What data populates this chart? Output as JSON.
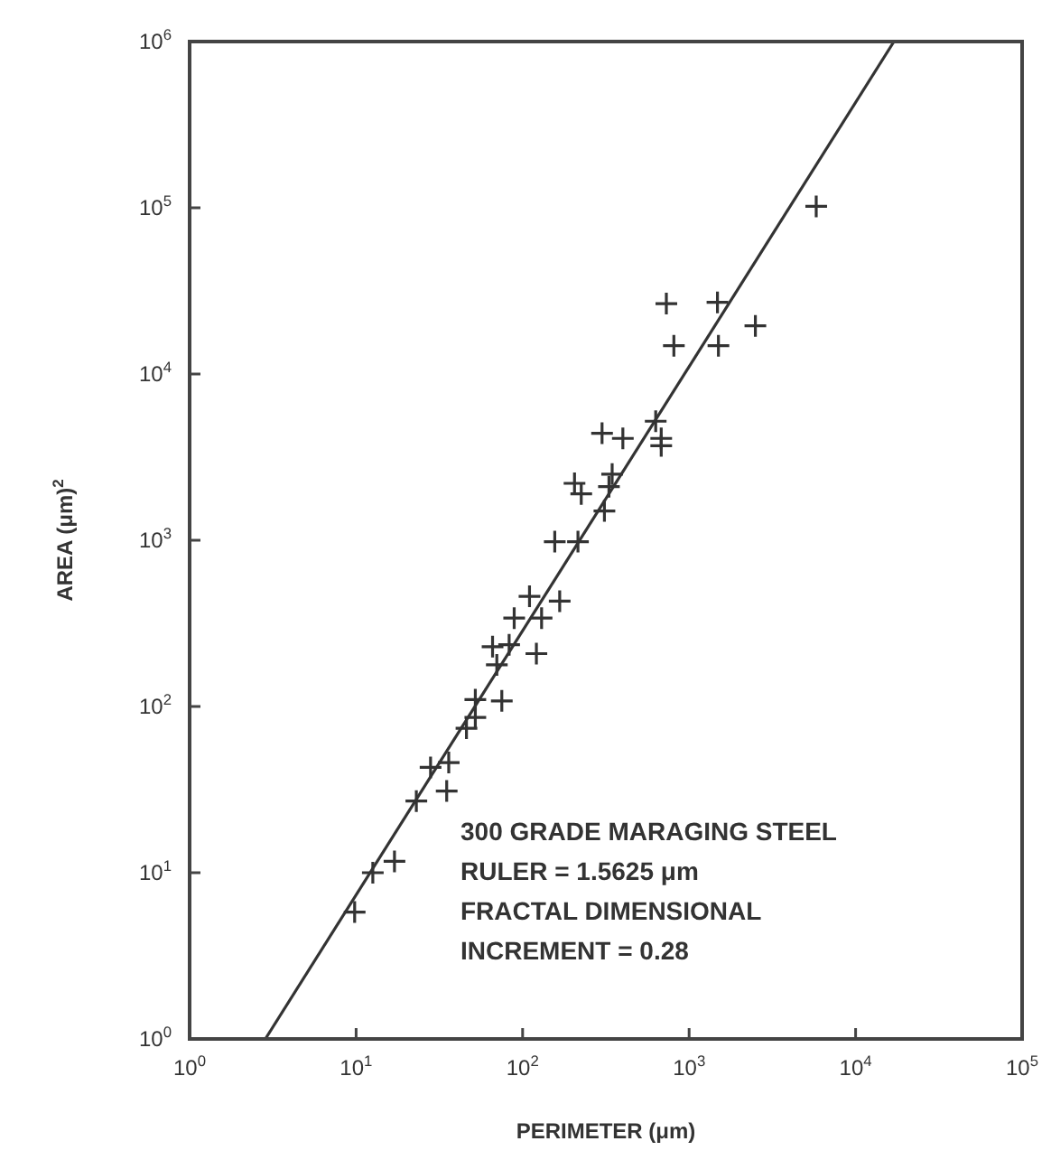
{
  "chart_data": {
    "type": "scatter",
    "xlabel": "PERIMETER (μm)",
    "ylabel": "AREA (μm)$^{2}$",
    "log": "xy",
    "xlim": [
      1,
      100000
    ],
    "ylim": [
      1,
      1000000
    ],
    "xticks": [
      {
        "value": 1,
        "label": "10$^{0}$"
      },
      {
        "value": 10,
        "label": "10$^{1}$"
      },
      {
        "value": 100,
        "label": "10$^{2}$"
      },
      {
        "value": 1000,
        "label": "10$^{3}$"
      },
      {
        "value": 10000,
        "label": "10$^{4}$"
      },
      {
        "value": 100000,
        "label": "10$^{5}$"
      }
    ],
    "yticks": [
      {
        "value": 1,
        "label": "10$^{0}$"
      },
      {
        "value": 10,
        "label": "10$^{1}$"
      },
      {
        "value": 100,
        "label": "10$^{2}$"
      },
      {
        "value": 1000,
        "label": "10$^{3}$"
      },
      {
        "value": 10000,
        "label": "10$^{4}$"
      },
      {
        "value": 100000,
        "label": "10$^{5}$"
      },
      {
        "value": 1000000,
        "label": "10$^{6}$"
      }
    ],
    "grid": false,
    "series": [
      {
        "marker": "cross",
        "color": "#333333",
        "x": [
          9.8,
          12.6,
          17,
          23,
          35,
          28,
          36,
          46,
          52,
          52,
          75,
          70,
          66,
          83,
          89,
          121,
          110,
          130,
          167,
          156,
          215,
          310,
          5800,
          730,
          1480,
          2500,
          810,
          1500,
          300,
          400,
          630,
          680,
          680,
          205,
          225,
          345,
          330
        ],
        "values": [
          5.8,
          10,
          11.7,
          27,
          31,
          43,
          46,
          74,
          86,
          110,
          108,
          178,
          229,
          235,
          340,
          208,
          460,
          340,
          430,
          980,
          980,
          1500,
          102000,
          26500,
          27000,
          19500,
          14800,
          14800,
          4400,
          4100,
          5200,
          4100,
          3700,
          2200,
          1900,
          2500,
          2100
        ]
      },
      {
        "type": "line",
        "color": "#333333",
        "line_style": "solid",
        "x": [
          2.85,
          17000
        ],
        "values": [
          1,
          1000000
        ]
      }
    ],
    "annotations": [
      "300 GRADE MARAGING STEEL",
      "RULER = 1.5625 μm",
      "FRACTAL DIMENSIONAL",
      "INCREMENT = 0.28"
    ]
  }
}
